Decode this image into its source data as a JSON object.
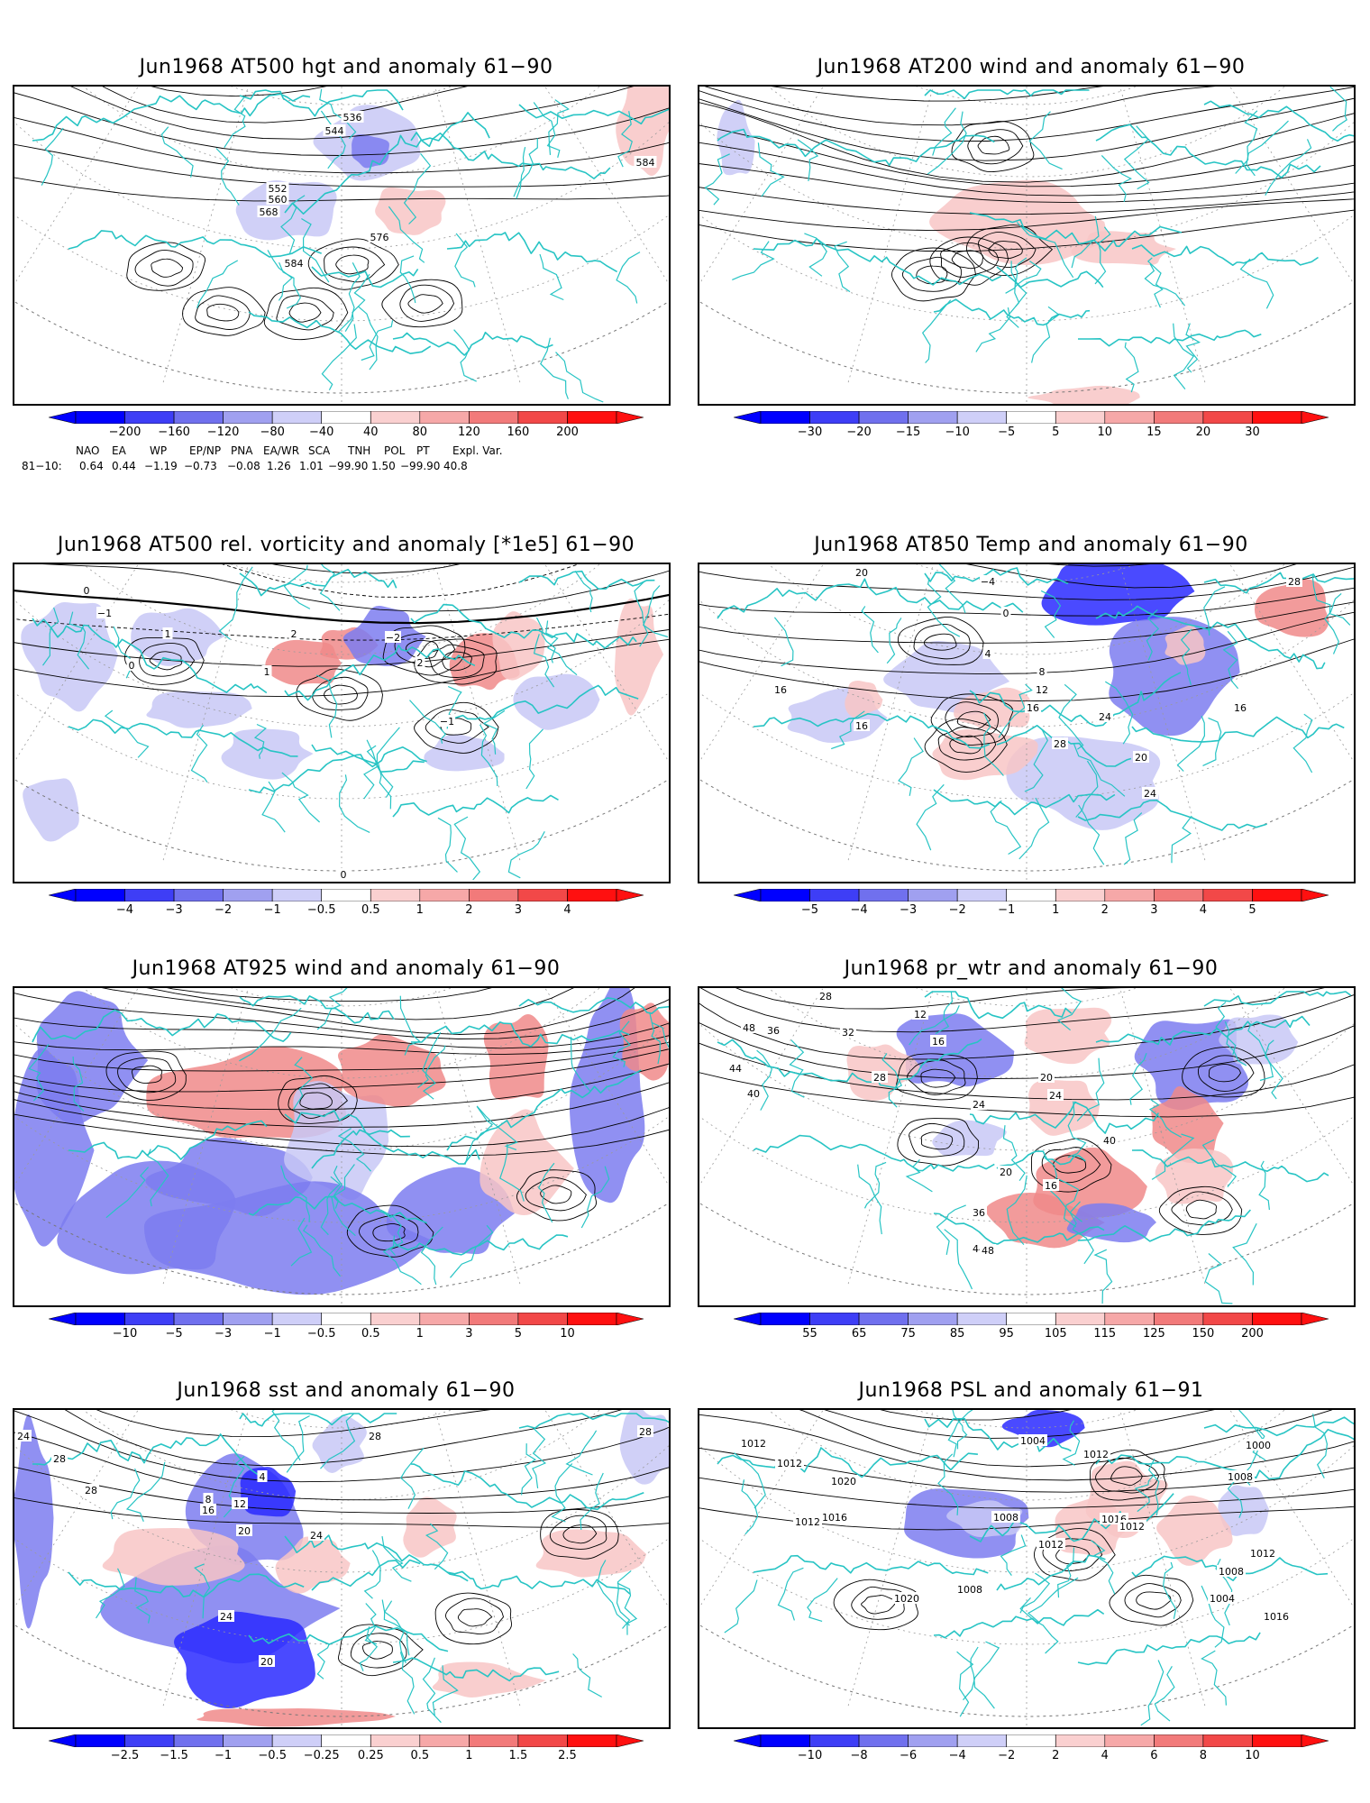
{
  "colors": {
    "coastline": "#27c4c4",
    "contour": "#000000",
    "graticule": "#9a9a9a",
    "anomaly_blue_strong": "#2a2aff",
    "anomaly_blue_mid": "#7c7cf0",
    "anomaly_blue_light": "#c8c8f6",
    "anomaly_red_light": "#f8c6c6",
    "anomaly_red_mid": "#f08a8a",
    "anomaly_red_strong": "#ff2a2a"
  },
  "panels": [
    {
      "title": "Jun1968 AT500 hgt and anomaly 61−90",
      "colorbar_ticks": [
        "−200",
        "−160",
        "−120",
        "−80",
        "−40",
        "40",
        "80",
        "120",
        "160",
        "200"
      ],
      "contour_labels": [
        "536",
        "544",
        "552",
        "560",
        "568",
        "576",
        "584",
        "584"
      ]
    },
    {
      "title": "Jun1968 AT200 wind and anomaly 61−90",
      "colorbar_ticks": [
        "−30",
        "−20",
        "−15",
        "−10",
        "−5",
        "5",
        "10",
        "15",
        "20",
        "30"
      ],
      "contour_labels": []
    },
    {
      "title": "Jun1968 AT500 rel. vorticity and anomaly [*1e5] 61−90",
      "colorbar_ticks": [
        "−4",
        "−3",
        "−2",
        "−1",
        "−0.5",
        "0.5",
        "1",
        "2",
        "3",
        "4"
      ],
      "contour_labels": [
        "0",
        "−1",
        "1",
        "2",
        "−2",
        "0",
        "1",
        "−1",
        "0",
        "2"
      ]
    },
    {
      "title": "Jun1968 AT850 Temp and anomaly 61−90",
      "colorbar_ticks": [
        "−5",
        "−4",
        "−3",
        "−2",
        "−1",
        "1",
        "2",
        "3",
        "4",
        "5"
      ],
      "contour_labels": [
        "20",
        "28",
        "−4",
        "0",
        "4",
        "8",
        "12",
        "16",
        "24",
        "28",
        "16",
        "16",
        "20",
        "24",
        "16"
      ]
    },
    {
      "title": "Jun1968 AT925 wind and anomaly 61−90",
      "colorbar_ticks": [
        "−10",
        "−5",
        "−3",
        "−1",
        "−0.5",
        "0.5",
        "1",
        "3",
        "5",
        "10"
      ],
      "contour_labels": []
    },
    {
      "title": "Jun1968 pr_wtr and anomaly 61−90",
      "colorbar_ticks": [
        "55",
        "65",
        "75",
        "85",
        "95",
        "105",
        "115",
        "125",
        "150",
        "200"
      ],
      "contour_labels": [
        "28",
        "36",
        "40",
        "44",
        "48",
        "32",
        "28",
        "24",
        "16",
        "12",
        "20",
        "24",
        "40",
        "36",
        "44",
        "48",
        "16",
        "20"
      ]
    },
    {
      "title": "Jun1968 sst and anomaly 61−90",
      "colorbar_ticks": [
        "−2.5",
        "−1.5",
        "−1",
        "−0.5",
        "−0.25",
        "0.25",
        "0.5",
        "1",
        "1.5",
        "2.5"
      ],
      "contour_labels": [
        "24",
        "28",
        "28",
        "8",
        "16",
        "12",
        "20",
        "4",
        "24",
        "28",
        "28",
        "20",
        "24"
      ]
    },
    {
      "title": "Jun1968 PSL and anomaly 61−91",
      "colorbar_ticks": [
        "−10",
        "−8",
        "−6",
        "−4",
        "−2",
        "2",
        "4",
        "6",
        "8",
        "10"
      ],
      "contour_labels": [
        "1012",
        "1012",
        "1016",
        "1020",
        "1012",
        "1008",
        "1012",
        "1004",
        "1008",
        "1016",
        "1012",
        "1016",
        "1004",
        "1008",
        "1012",
        "1020",
        "1008",
        "1012",
        "1000"
      ]
    }
  ],
  "teleconnections": {
    "headers": [
      "NAO",
      "EA",
      "WP",
      "EP/NP",
      "PNA",
      "EA/WR",
      "SCA",
      "TNH",
      "POL",
      "PT",
      "Expl. Var."
    ],
    "row_label": "81−10:",
    "values": [
      "0.64",
      "0.44",
      "−1.19",
      "−0.73",
      "−0.08",
      "1.26",
      "1.01",
      "−99.90",
      "1.50",
      "−99.90",
      "40.8"
    ]
  }
}
